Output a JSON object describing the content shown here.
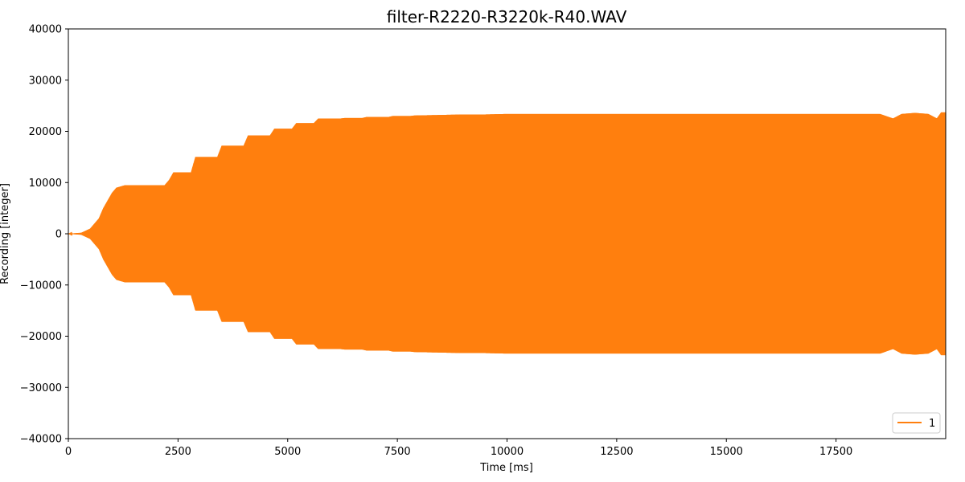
{
  "chart_data": {
    "type": "line",
    "title": "filter-R2220-R3220k-R40.WAV",
    "xlabel": "Time [ms]",
    "ylabel": "Recording [integer]",
    "xlim": [
      0,
      20000
    ],
    "ylim": [
      -40000,
      40000
    ],
    "xticks": [
      0,
      2500,
      5000,
      7500,
      10000,
      12500,
      15000,
      17500
    ],
    "xtick_labels": [
      "0",
      "2500",
      "5000",
      "7500",
      "10000",
      "12500",
      "15000",
      "17500"
    ],
    "yticks": [
      -40000,
      -30000,
      -20000,
      -10000,
      0,
      10000,
      20000,
      30000,
      40000
    ],
    "ytick_labels": [
      "−40000",
      "−30000",
      "−20000",
      "−10000",
      "0",
      "10000",
      "20000",
      "30000",
      "40000"
    ],
    "grid": false,
    "legend": {
      "position": "bottom-right",
      "entries": [
        "1"
      ]
    },
    "series": [
      {
        "name": "1",
        "color": "#ff7f0e",
        "envelope": {
          "time_ms": [
            0,
            300,
            500,
            700,
            800,
            900,
            1000,
            1100,
            1300,
            2200,
            2300,
            2400,
            2800,
            2900,
            3400,
            3500,
            4000,
            4100,
            4600,
            4700,
            5100,
            5200,
            5600,
            5700,
            6200,
            6300,
            6700,
            6800,
            7300,
            7400,
            7800,
            7900,
            8500,
            9000,
            9500,
            10000,
            11000,
            12500,
            15000,
            17000,
            18500,
            18800,
            19000,
            19300,
            19600,
            19800,
            19900,
            20000
          ],
          "amplitude": [
            0,
            200,
            1000,
            3000,
            5000,
            6500,
            8000,
            9000,
            9500,
            9500,
            10500,
            12000,
            12000,
            15000,
            15000,
            17200,
            17200,
            19200,
            19200,
            20500,
            20500,
            21600,
            21600,
            22500,
            22500,
            22600,
            22600,
            22800,
            22800,
            23000,
            23000,
            23100,
            23200,
            23300,
            23300,
            23400,
            23400,
            23400,
            23400,
            23400,
            23400,
            22500,
            23400,
            23600,
            23400,
            22500,
            23700,
            23700
          ]
        }
      }
    ]
  }
}
